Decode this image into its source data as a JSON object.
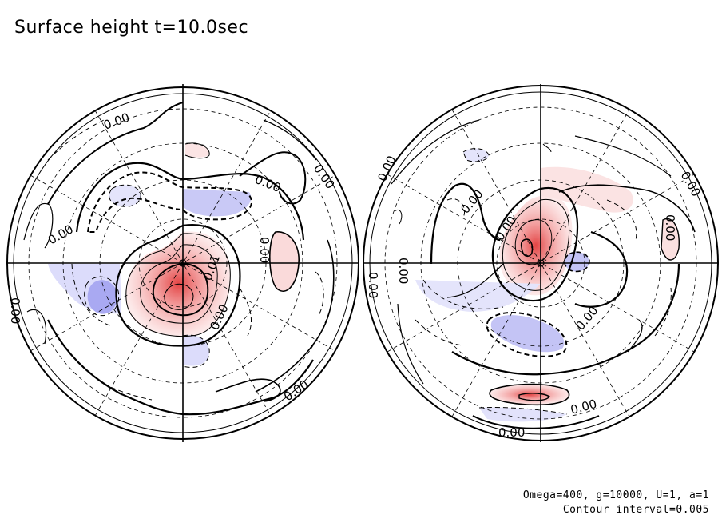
{
  "title": "Surface height t=10.0sec",
  "params": "Omega=400, g=10000, U=1, a=1",
  "contour_interval": "Contour interval=0.005",
  "colors": {
    "positive": "#e85a5a",
    "negative": "#7b7bea",
    "line": "#000000"
  },
  "hemispheres": [
    {
      "labels": [
        "0.00",
        "0.00",
        "0.00",
        "0.00",
        "0.00",
        "0.01",
        "0.00",
        "0.00",
        "0.00"
      ]
    },
    {
      "labels": [
        "0.00",
        "0.00",
        "0.00",
        "0.00",
        "0.00",
        "0.00",
        "0.00",
        "0.00",
        "0.00",
        "0.00"
      ]
    }
  ]
}
